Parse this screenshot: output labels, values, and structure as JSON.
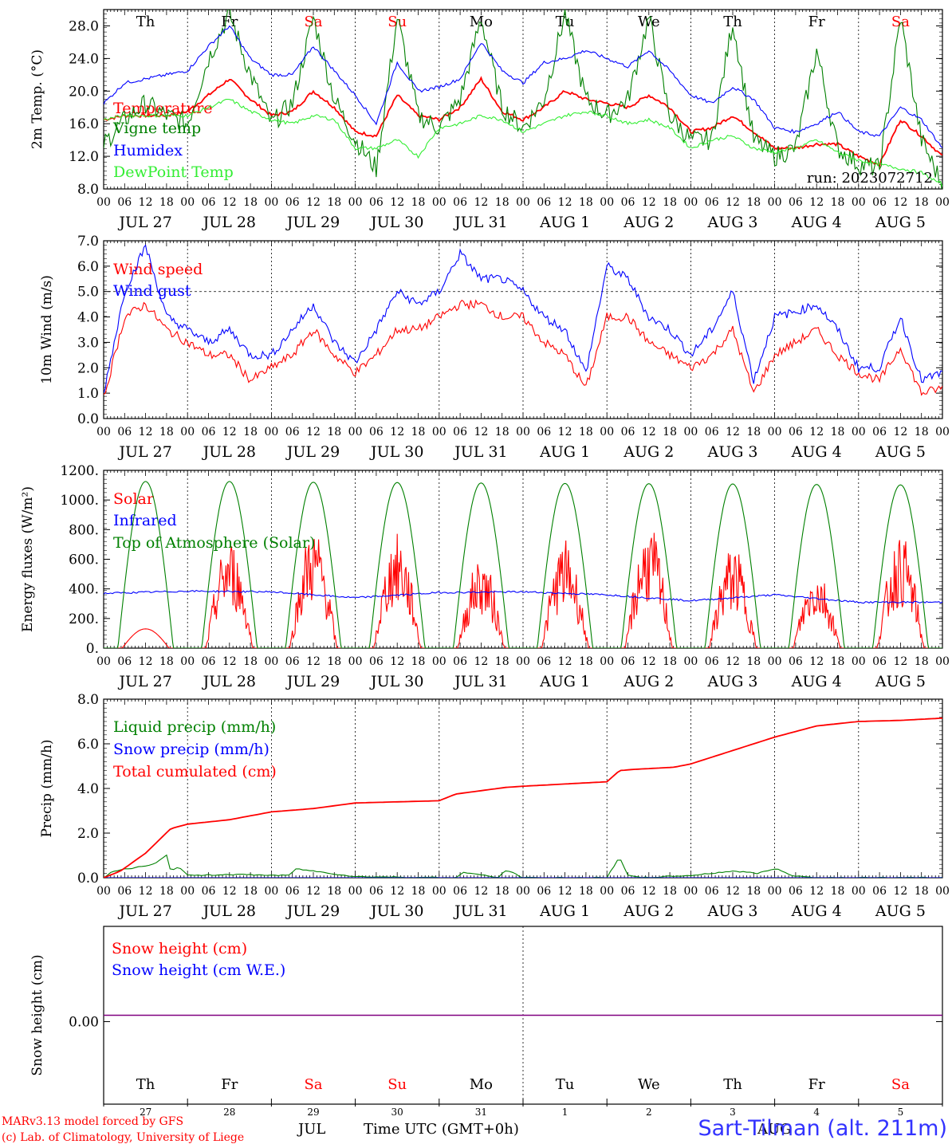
{
  "site_label": "Sart-Tilman (alt. 211m)",
  "model_label": "MARv3.13 model forced by GFS",
  "copyright_label": "(c) Lab. of Climatology, University of Liege",
  "time_axis_title": "Time UTC (GMT+0h)",
  "month_label_jul": "JUL",
  "month_label_aug": "AUG",
  "days": [
    {
      "weekday": "Th",
      "date": "JUL 27",
      "day_num": "27",
      "weekend": false
    },
    {
      "weekday": "Fr",
      "date": "JUL 28",
      "day_num": "28",
      "weekend": false
    },
    {
      "weekday": "Sa",
      "date": "JUL 29",
      "day_num": "29",
      "weekend": true
    },
    {
      "weekday": "Su",
      "date": "JUL 30",
      "day_num": "30",
      "weekend": true
    },
    {
      "weekday": "Mo",
      "date": "JUL 31",
      "day_num": "31",
      "weekend": false
    },
    {
      "weekday": "Tu",
      "date": "AUG  1",
      "day_num": "1",
      "weekend": false
    },
    {
      "weekday": "We",
      "date": "AUG  2",
      "day_num": "2",
      "weekend": false
    },
    {
      "weekday": "Th",
      "date": "AUG  3",
      "day_num": "3",
      "weekend": false
    },
    {
      "weekday": "Fr",
      "date": "AUG  4",
      "day_num": "4",
      "weekend": false
    },
    {
      "weekday": "Sa",
      "date": "AUG  5",
      "day_num": "5",
      "weekend": true
    }
  ],
  "hour_ticks": [
    "00",
    "06",
    "12",
    "18"
  ],
  "colors": {
    "red": "#ff0000",
    "green": "#008000",
    "blue": "#0000ff",
    "light_green": "#33ee33",
    "purple": "#800080"
  },
  "chart_data": [
    {
      "type": "line",
      "ylabel": "2m Temp. (°C)",
      "ylim": [
        8,
        30
      ],
      "ticks": [
        "8.0",
        "12.0",
        "16.0",
        "20.0",
        "24.0",
        "28.0"
      ],
      "annotation": "run: 2023072712",
      "x_unit": "days since JUL 27 00 UTC",
      "series": [
        {
          "name": "Temperature",
          "color": "#ff0000",
          "x": [
            0,
            0.25,
            0.5,
            0.75,
            1.0,
            1.25,
            1.5,
            1.75,
            2.0,
            2.25,
            2.5,
            2.75,
            3.0,
            3.25,
            3.5,
            3.75,
            4.0,
            4.25,
            4.5,
            4.75,
            5.0,
            5.25,
            5.5,
            5.75,
            6.0,
            6.25,
            6.5,
            6.75,
            7.0,
            7.25,
            7.5,
            7.75,
            8.0,
            8.25,
            8.5,
            8.75,
            9.0,
            9.25,
            9.5,
            9.75,
            10.0
          ],
          "y": [
            16.5,
            17.0,
            17.0,
            17.0,
            17.5,
            19.5,
            21.5,
            19.0,
            17.0,
            17.5,
            20.0,
            18.0,
            15.0,
            14.5,
            19.5,
            17.0,
            16.5,
            18.0,
            21.5,
            17.5,
            16.5,
            18.0,
            20.0,
            19.0,
            18.5,
            18.0,
            19.5,
            18.0,
            15.0,
            15.5,
            17.0,
            15.0,
            13.0,
            13.0,
            13.5,
            13.5,
            12.0,
            11.0,
            16.5,
            14.5,
            12.0
          ]
        },
        {
          "name": "Vigne temp",
          "color": "#008000",
          "x": [
            0,
            0.25,
            0.5,
            0.75,
            1.0,
            1.25,
            1.5,
            1.75,
            2.0,
            2.25,
            2.5,
            2.75,
            3.0,
            3.25,
            3.5,
            3.75,
            4.0,
            4.25,
            4.5,
            4.75,
            5.0,
            5.25,
            5.5,
            5.75,
            6.0,
            6.25,
            6.5,
            6.75,
            7.0,
            7.25,
            7.5,
            7.75,
            8.0,
            8.25,
            8.5,
            8.75,
            9.0,
            9.25,
            9.5,
            9.75,
            10.0
          ],
          "y": [
            13.5,
            16.5,
            18.5,
            17.0,
            16.0,
            24.0,
            29.5,
            22.0,
            16.0,
            18.5,
            29.0,
            19.0,
            14.0,
            10.5,
            29.0,
            17.0,
            15.5,
            19.0,
            29.0,
            18.0,
            15.5,
            19.0,
            29.5,
            19.0,
            17.0,
            19.0,
            29.0,
            17.0,
            14.0,
            14.0,
            28.5,
            14.0,
            12.0,
            13.0,
            25.0,
            13.0,
            11.0,
            10.5,
            29.0,
            14.0,
            8.5
          ]
        },
        {
          "name": "Humidex",
          "color": "#0000ff",
          "x": [
            0,
            0.25,
            0.5,
            0.75,
            1.0,
            1.25,
            1.5,
            1.75,
            2.0,
            2.25,
            2.5,
            2.75,
            3.0,
            3.25,
            3.5,
            3.75,
            4.0,
            4.25,
            4.5,
            4.75,
            5.0,
            5.25,
            5.5,
            5.75,
            6.0,
            6.25,
            6.5,
            6.75,
            7.0,
            7.25,
            7.5,
            7.75,
            8.0,
            8.25,
            8.5,
            8.75,
            9.0,
            9.25,
            9.5,
            9.75,
            10.0
          ],
          "y": [
            18.5,
            21.0,
            21.5,
            22.0,
            22.5,
            25.5,
            28.0,
            24.0,
            22.0,
            22.0,
            25.5,
            22.5,
            19.5,
            16.0,
            23.5,
            20.0,
            20.5,
            21.5,
            26.0,
            22.5,
            21.0,
            23.5,
            24.0,
            25.0,
            24.0,
            23.0,
            25.0,
            22.5,
            19.5,
            18.5,
            20.5,
            19.0,
            15.5,
            15.0,
            16.0,
            17.5,
            15.0,
            14.5,
            18.0,
            16.5,
            13.0
          ]
        },
        {
          "name": "DewPoint Temp",
          "color": "#33ee33",
          "x": [
            0,
            0.25,
            0.5,
            0.75,
            1.0,
            1.25,
            1.5,
            1.75,
            2.0,
            2.25,
            2.5,
            2.75,
            3.0,
            3.25,
            3.5,
            3.75,
            4.0,
            4.25,
            4.5,
            4.75,
            5.0,
            5.25,
            5.5,
            5.75,
            6.0,
            6.25,
            6.5,
            6.75,
            7.0,
            7.25,
            7.5,
            7.75,
            8.0,
            8.25,
            8.5,
            8.75,
            9.0,
            9.25,
            9.5,
            9.75,
            10.0
          ],
          "y": [
            16.5,
            17.0,
            17.0,
            17.0,
            17.0,
            18.0,
            19.0,
            17.5,
            16.5,
            16.0,
            17.0,
            16.5,
            13.0,
            13.0,
            14.0,
            12.0,
            15.5,
            16.0,
            17.0,
            16.5,
            15.0,
            16.0,
            17.0,
            17.5,
            17.0,
            16.0,
            16.5,
            15.5,
            13.0,
            14.0,
            14.5,
            13.0,
            12.5,
            13.0,
            14.0,
            12.5,
            11.5,
            11.0,
            10.5,
            10.0,
            8.5
          ]
        }
      ]
    },
    {
      "type": "line",
      "ylabel": "10m Wind (m/s)",
      "ylim": [
        0,
        7
      ],
      "ticks": [
        "0.0",
        "1.0",
        "2.0",
        "3.0",
        "4.0",
        "5.0",
        "6.0",
        "7.0"
      ],
      "x_unit": "days since JUL 27 00 UTC",
      "series": [
        {
          "name": "Wind speed",
          "color": "#ff0000",
          "x": [
            0,
            0.25,
            0.5,
            0.75,
            1.0,
            1.25,
            1.5,
            1.75,
            2.0,
            2.25,
            2.5,
            2.75,
            3.0,
            3.25,
            3.5,
            3.75,
            4.0,
            4.25,
            4.5,
            4.75,
            5.0,
            5.25,
            5.5,
            5.75,
            6.0,
            6.25,
            6.5,
            6.75,
            7.0,
            7.25,
            7.5,
            7.75,
            8.0,
            8.25,
            8.5,
            8.75,
            9.0,
            9.25,
            9.5,
            9.75,
            10.0
          ],
          "y": [
            0.8,
            4.0,
            4.5,
            3.5,
            3.0,
            2.5,
            2.5,
            1.5,
            2.0,
            2.5,
            3.5,
            2.5,
            1.8,
            2.5,
            3.5,
            3.5,
            4.0,
            4.5,
            4.5,
            4.0,
            4.0,
            3.0,
            2.5,
            1.2,
            4.0,
            4.0,
            3.0,
            2.5,
            2.0,
            2.5,
            3.5,
            1.0,
            2.5,
            3.0,
            3.5,
            2.5,
            1.8,
            1.5,
            2.8,
            1.0,
            1.2
          ]
        },
        {
          "name": "Wind gust",
          "color": "#0000ff",
          "x": [
            0,
            0.25,
            0.5,
            0.75,
            1.0,
            1.25,
            1.5,
            1.75,
            2.0,
            2.25,
            2.5,
            2.75,
            3.0,
            3.25,
            3.5,
            3.75,
            4.0,
            4.25,
            4.5,
            4.75,
            5.0,
            5.25,
            5.5,
            5.75,
            6.0,
            6.25,
            6.5,
            6.75,
            7.0,
            7.25,
            7.5,
            7.75,
            8.0,
            8.25,
            8.5,
            8.75,
            9.0,
            9.25,
            9.5,
            9.75,
            10.0
          ],
          "y": [
            1.0,
            5.0,
            6.8,
            4.0,
            3.5,
            3.0,
            3.5,
            2.5,
            2.5,
            3.5,
            4.5,
            3.0,
            2.2,
            3.5,
            5.0,
            4.5,
            5.0,
            6.5,
            5.5,
            5.5,
            5.0,
            4.0,
            3.5,
            1.8,
            6.0,
            5.5,
            4.0,
            3.5,
            2.5,
            3.5,
            5.0,
            1.5,
            4.0,
            4.2,
            4.5,
            3.5,
            2.0,
            2.0,
            4.0,
            1.5,
            1.8
          ]
        }
      ]
    },
    {
      "type": "line",
      "ylabel": "Energy fluxes (W/m²)",
      "ylim": [
        0,
        1200
      ],
      "ticks": [
        "0.",
        "200.",
        "400.",
        "600.",
        "800.",
        "1000.",
        "1200."
      ],
      "x_unit": "days since JUL 27 00 UTC",
      "series": [
        {
          "name": "Solar",
          "color": "#ff0000",
          "daily_peaks": [
            130,
            740,
            820,
            780,
            620,
            730,
            830,
            690,
            540,
            770
          ]
        },
        {
          "name": "Infrared",
          "color": "#0000ff",
          "x": [
            0,
            1,
            2,
            3,
            4,
            5,
            6,
            7,
            8,
            9,
            10
          ],
          "y": [
            370,
            385,
            380,
            340,
            375,
            380,
            360,
            320,
            360,
            310,
            310
          ]
        },
        {
          "name": "Top of Atmosphere (Solar)",
          "color": "#008000",
          "daily_peaks": [
            1125,
            1125,
            1120,
            1118,
            1115,
            1112,
            1110,
            1108,
            1105,
            1102
          ]
        }
      ]
    },
    {
      "type": "line",
      "ylabel": "Precip (mm/h)",
      "ylim": [
        0,
        8
      ],
      "ticks": [
        "0.0",
        "2.0",
        "4.0",
        "6.0",
        "8.0"
      ],
      "x_unit": "days since JUL 27 00 UTC",
      "series": [
        {
          "name": "Liquid precip (mm/h)",
          "color": "#008000",
          "x": [
            0,
            0.1,
            0.3,
            0.6,
            0.75,
            0.8,
            0.9,
            1.0,
            1.5,
            2.2,
            2.3,
            3.0,
            4.2,
            4.3,
            4.7,
            4.8,
            5.0,
            6.0,
            6.15,
            6.25,
            6.4,
            7.0,
            7.5,
            7.8,
            8.0,
            8.1,
            8.2,
            8.5,
            9.0,
            10.0
          ],
          "y": [
            0,
            0.3,
            0.4,
            0.6,
            1.0,
            0.3,
            0.5,
            0.1,
            0.15,
            0.1,
            0.4,
            0.05,
            0,
            0.25,
            0,
            0.35,
            0,
            0,
            0.95,
            0.1,
            0,
            0.1,
            0.3,
            0.2,
            0.4,
            0.3,
            0.1,
            0,
            0,
            0
          ]
        },
        {
          "name": "Snow precip (mm/h)",
          "color": "#0000ff",
          "x": [
            0,
            10
          ],
          "y": [
            0,
            0
          ]
        },
        {
          "name": "Total cumulated (cm)",
          "color": "#ff0000",
          "x": [
            0,
            0.2,
            0.5,
            0.8,
            1.0,
            1.5,
            2.0,
            2.5,
            3.0,
            3.5,
            4.0,
            4.2,
            4.5,
            4.8,
            5.0,
            5.5,
            6.0,
            6.15,
            6.3,
            6.8,
            7.0,
            7.5,
            8.0,
            8.5,
            9.0,
            9.5,
            10.0
          ],
          "y": [
            0,
            0.3,
            1.1,
            2.2,
            2.4,
            2.6,
            2.95,
            3.1,
            3.35,
            3.4,
            3.45,
            3.75,
            3.9,
            4.05,
            4.1,
            4.2,
            4.3,
            4.8,
            4.85,
            4.95,
            5.1,
            5.7,
            6.3,
            6.8,
            7.0,
            7.05,
            7.15
          ]
        }
      ]
    },
    {
      "type": "line",
      "ylabel": "Snow height (cm)",
      "ticks": [
        "0.00"
      ],
      "x_unit": "days since JUL 27 00 UTC",
      "series": [
        {
          "name": "Snow height (cm)",
          "color": "#ff0000",
          "x": [
            0,
            10
          ],
          "y": [
            0,
            0
          ]
        },
        {
          "name": "Snow height (cm W.E.)",
          "color": "#0000ff",
          "x": [
            0,
            10
          ],
          "y": [
            0,
            0
          ]
        }
      ]
    }
  ]
}
